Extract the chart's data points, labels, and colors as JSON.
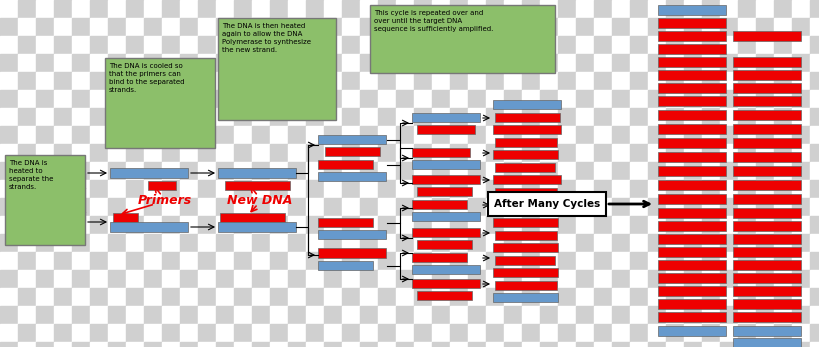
{
  "fig_w": 8.2,
  "fig_h": 3.47,
  "blue": "#6699CC",
  "red": "#EE0000",
  "green_box": "#8CBF6A",
  "text_box1": "The DNA is\nheated to\nseparate the\nstrands.",
  "text_box2": "The DNA is cooled so\nthat the primers can\nbind to the separated\nstrands.",
  "text_box3": "The DNA is then heated\nagain to allow the DNA\nPolymerase to synthesize\nthe new strand.",
  "text_box4": "This cycle is repeated over and\nover until the target DNA\nsequence is sufficiently amplified.",
  "text_primers": "Primers",
  "text_new_dna": "New DNA",
  "text_after_cycles": "After Many Cycles",
  "checker_light": "#ffffff",
  "checker_dark": "#d0d0d0",
  "checker_sq": 18
}
